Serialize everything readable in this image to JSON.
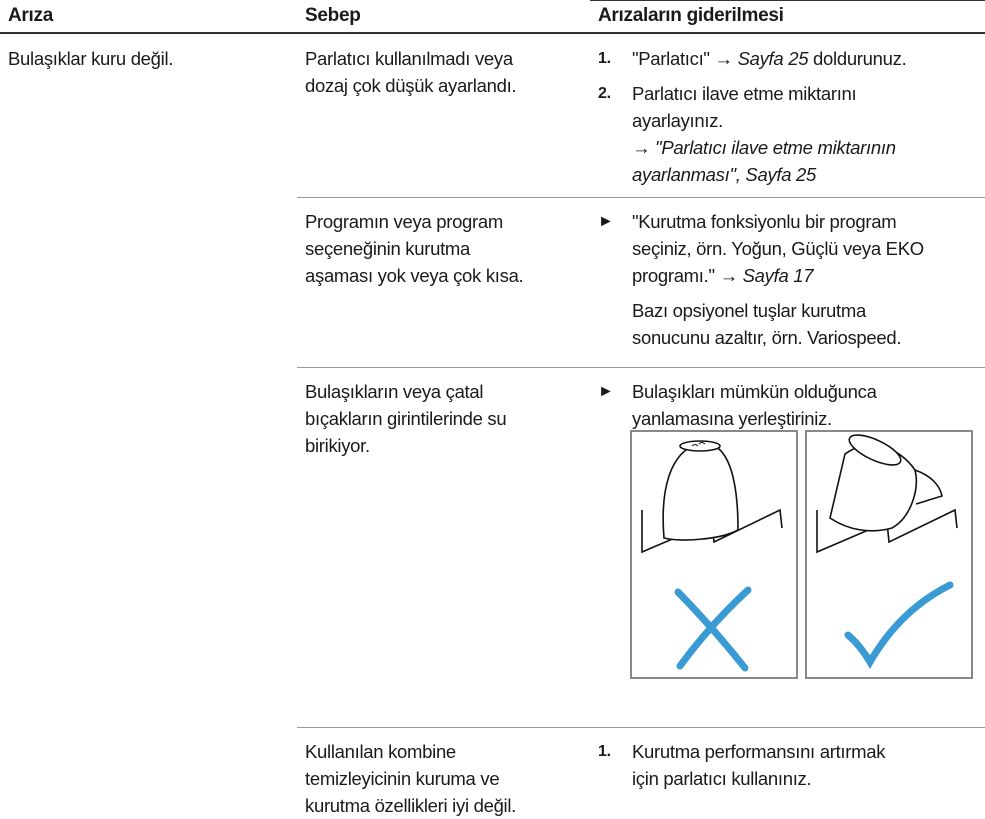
{
  "header": [
    "Arıza",
    "Sebep",
    "Arızaların giderilmesi"
  ],
  "fault": "Bulaşıklar kuru değil.",
  "causes": [
    {
      "lines": [
        "Parlatıcı kullanılmadı veya",
        "dozaj çok düşük ayarlandı."
      ],
      "remedies": [
        {
          "marker": "1.",
          "lines": [
            [
              "\"Parlatıcı\" → ",
              {
                "text": "Sayfa 25",
                "italic": true
              },
              " doldurunuz."
            ]
          ]
        },
        {
          "marker": "2.",
          "lines": [
            [
              "Parlatıcı ilave etme miktarını"
            ],
            [
              "ayarlayınız."
            ],
            [
              "→ ",
              {
                "text": "\"Parlatıcı ilave etme miktarının",
                "italic": true
              }
            ],
            [
              {
                "text": "ayarlanması\", Sayfa 25",
                "italic": true
              }
            ]
          ]
        }
      ]
    },
    {
      "lines": [
        "Programın veya program",
        "seçeneğinin kurutma",
        "aşaması yok veya çok kısa."
      ],
      "remedies": [
        {
          "marker": "►",
          "lines": [
            [
              "\"Kurutma fonksiyonlu bir program"
            ],
            [
              "seçiniz, örn. Yoğun, Güçlü veya EKO"
            ],
            [
              "programı.\" → ",
              {
                "text": "Sayfa 17",
                "italic": true
              }
            ]
          ]
        },
        {
          "lines": [
            [
              "Bazı opsiyonel tuşlar kurutma"
            ],
            [
              "sonucunu azaltır, örn. Variospeed."
            ]
          ]
        }
      ]
    },
    {
      "lines": [
        "Bulaşıkların veya çatal",
        "bıçakların girintilerinde su",
        "birikiyor."
      ],
      "remedies": [
        {
          "marker": "►",
          "lines": [
            [
              "Bulaşıkları mümkün olduğunca"
            ],
            [
              "yanlamasına yerleştiriniz."
            ]
          ]
        }
      ]
    },
    {
      "lines": [
        "Kullanılan kombine",
        "temizleyicinin kuruma ve",
        "kurutma özellikleri iyi değil."
      ],
      "remedies": [
        {
          "marker": "1.",
          "lines": [
            [
              "Kurutma performansını artırmak"
            ],
            [
              "için parlatıcı kullanınız."
            ]
          ]
        }
      ]
    }
  ]
}
